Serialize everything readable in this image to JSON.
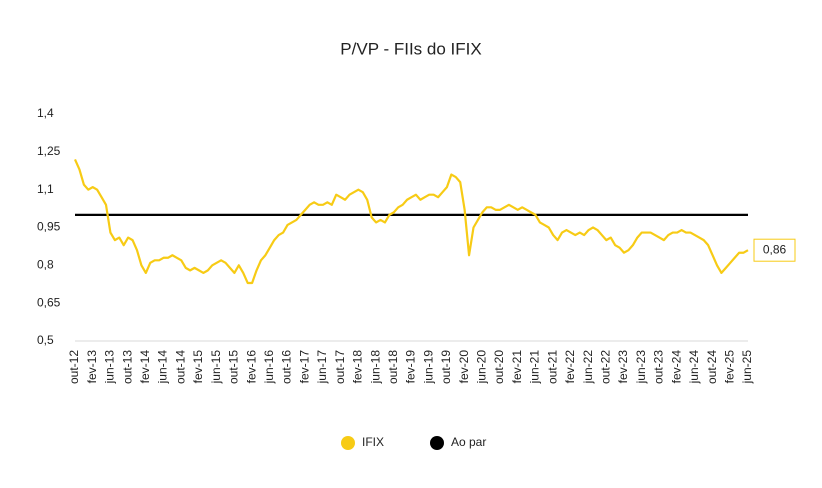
{
  "chart_data": {
    "type": "line",
    "title": "P/VP - FIIs do IFIX",
    "categories": [
      "out-12",
      null,
      null,
      null,
      "fev-13",
      null,
      null,
      null,
      "jun-13",
      null,
      null,
      null,
      "out-13",
      null,
      null,
      null,
      "fev-14",
      null,
      null,
      null,
      "jun-14",
      null,
      null,
      null,
      "out-14",
      null,
      null,
      null,
      "fev-15",
      null,
      null,
      null,
      "jun-15",
      null,
      null,
      null,
      "out-15",
      null,
      null,
      null,
      "fev-16",
      null,
      null,
      null,
      "jun-16",
      null,
      null,
      null,
      "out-16",
      null,
      null,
      null,
      "fev-17",
      null,
      null,
      null,
      "jun-17",
      null,
      null,
      null,
      "out-17",
      null,
      null,
      null,
      "fev-18",
      null,
      null,
      null,
      "jun-18",
      null,
      null,
      null,
      "out-18",
      null,
      null,
      null,
      "fev-19",
      null,
      null,
      null,
      "jun-19",
      null,
      null,
      null,
      "out-19",
      null,
      null,
      null,
      "fev-20",
      null,
      null,
      null,
      "jun-20",
      null,
      null,
      null,
      "out-20",
      null,
      null,
      null,
      "fev-21",
      null,
      null,
      null,
      "jun-21",
      null,
      null,
      null,
      "out-21",
      null,
      null,
      null,
      "fev-22",
      null,
      null,
      null,
      "jun-22",
      null,
      null,
      null,
      "out-22",
      null,
      null,
      null,
      "fev-23",
      null,
      null,
      null,
      "jun-23",
      null,
      null,
      null,
      "out-23",
      null,
      null,
      null,
      "fev-24",
      null,
      null,
      null,
      "jun-24",
      null,
      null,
      null,
      "out-24",
      null,
      null,
      null,
      "fev-25",
      null,
      null,
      null,
      "jun-25"
    ],
    "series": [
      {
        "name": "IFIX",
        "color": "#f7cb15",
        "values": [
          1.22,
          1.18,
          1.12,
          1.1,
          1.11,
          1.1,
          1.07,
          1.04,
          0.93,
          0.9,
          0.91,
          0.88,
          0.91,
          0.9,
          0.86,
          0.8,
          0.77,
          0.81,
          0.82,
          0.82,
          0.83,
          0.83,
          0.84,
          0.83,
          0.82,
          0.79,
          0.78,
          0.79,
          0.78,
          0.77,
          0.78,
          0.8,
          0.81,
          0.82,
          0.81,
          0.79,
          0.77,
          0.8,
          0.77,
          0.73,
          0.73,
          0.78,
          0.82,
          0.84,
          0.87,
          0.9,
          0.92,
          0.93,
          0.96,
          0.97,
          0.98,
          1.0,
          1.02,
          1.04,
          1.05,
          1.04,
          1.04,
          1.05,
          1.04,
          1.08,
          1.07,
          1.06,
          1.08,
          1.09,
          1.1,
          1.09,
          1.06,
          0.99,
          0.97,
          0.98,
          0.97,
          1.0,
          1.01,
          1.03,
          1.04,
          1.06,
          1.07,
          1.08,
          1.06,
          1.07,
          1.08,
          1.08,
          1.07,
          1.09,
          1.11,
          1.16,
          1.15,
          1.13,
          1.02,
          0.84,
          0.95,
          0.98,
          1.01,
          1.03,
          1.03,
          1.02,
          1.02,
          1.03,
          1.04,
          1.03,
          1.02,
          1.03,
          1.02,
          1.01,
          1.0,
          0.97,
          0.96,
          0.95,
          0.92,
          0.9,
          0.93,
          0.94,
          0.93,
          0.92,
          0.93,
          0.92,
          0.94,
          0.95,
          0.94,
          0.92,
          0.9,
          0.91,
          0.88,
          0.87,
          0.85,
          0.86,
          0.88,
          0.91,
          0.93,
          0.93,
          0.93,
          0.92,
          0.91,
          0.9,
          0.92,
          0.93,
          0.93,
          0.94,
          0.93,
          0.93,
          0.92,
          0.91,
          0.9,
          0.88,
          0.84,
          0.8,
          0.77,
          0.79,
          0.81,
          0.83,
          0.85,
          0.85,
          0.86
        ],
        "value_labels": [
          null,
          null,
          null,
          null,
          null,
          null,
          null,
          null,
          null,
          null,
          null,
          null,
          null,
          null,
          null,
          null,
          null,
          null,
          null,
          null,
          null,
          null,
          null,
          null,
          null,
          null,
          null,
          null,
          null,
          null,
          null,
          null,
          null,
          null,
          null,
          null,
          null,
          null,
          null,
          null,
          null,
          null,
          null,
          null,
          null,
          null,
          null,
          null,
          null,
          null,
          null,
          null,
          null,
          null,
          null,
          null,
          null,
          null,
          null,
          null,
          null,
          null,
          null,
          null,
          null,
          null,
          null,
          null,
          null,
          null,
          null,
          null,
          null,
          null,
          null,
          null,
          null,
          null,
          null,
          null,
          null,
          null,
          null,
          null,
          null,
          null,
          null,
          null,
          null,
          null,
          null,
          null,
          null,
          null,
          null,
          null,
          null,
          null,
          null,
          null,
          null,
          null,
          null,
          null,
          null,
          null,
          null,
          null,
          null,
          null,
          null,
          null,
          null,
          null,
          null,
          null,
          null,
          null,
          null,
          null,
          null,
          null,
          null,
          null,
          null,
          null,
          null,
          null,
          null,
          null,
          null,
          null,
          null,
          null,
          null,
          null,
          null,
          null,
          null,
          null,
          null,
          null,
          null,
          null,
          null,
          null,
          null,
          null,
          null,
          null,
          null,
          null,
          "0,86"
        ]
      }
    ],
    "reference_line": {
      "name": "Ao par",
      "value": 1,
      "color": "#000000"
    },
    "ylim": [
      0.5,
      1.4
    ],
    "yticks": [
      {
        "value": 0.5,
        "label": "0,5"
      },
      {
        "value": 0.65,
        "label": "0,65"
      },
      {
        "value": 0.8,
        "label": "0,8"
      },
      {
        "value": 0.95,
        "label": "0,95"
      },
      {
        "value": 1.1,
        "label": "1,1"
      },
      {
        "value": 1.25,
        "label": "1,25"
      },
      {
        "value": 1.4,
        "label": "1,4"
      }
    ],
    "grid": false
  }
}
